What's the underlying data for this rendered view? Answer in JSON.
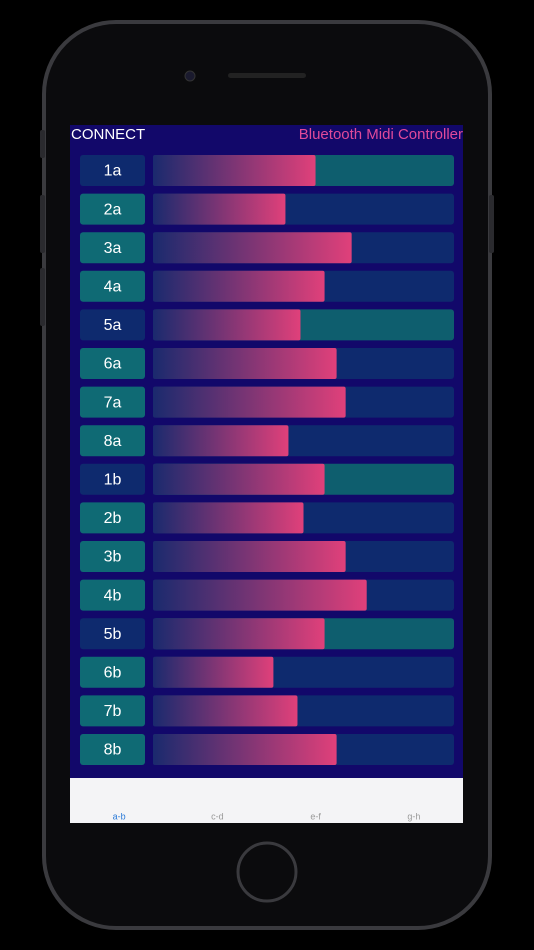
{
  "header": {
    "connect": "CONNECT",
    "title": "Bluetooth Midi Controller"
  },
  "sliders": [
    {
      "label": "1a",
      "value": 0.54,
      "highlighted": true
    },
    {
      "label": "2a",
      "value": 0.44,
      "highlighted": false
    },
    {
      "label": "3a",
      "value": 0.66,
      "highlighted": false
    },
    {
      "label": "4a",
      "value": 0.57,
      "highlighted": false
    },
    {
      "label": "5a",
      "value": 0.49,
      "highlighted": true
    },
    {
      "label": "6a",
      "value": 0.61,
      "highlighted": false
    },
    {
      "label": "7a",
      "value": 0.64,
      "highlighted": false
    },
    {
      "label": "8a",
      "value": 0.45,
      "highlighted": false
    },
    {
      "label": "1b",
      "value": 0.57,
      "highlighted": true
    },
    {
      "label": "2b",
      "value": 0.5,
      "highlighted": false
    },
    {
      "label": "3b",
      "value": 0.64,
      "highlighted": false
    },
    {
      "label": "4b",
      "value": 0.71,
      "highlighted": false
    },
    {
      "label": "5b",
      "value": 0.57,
      "highlighted": true
    },
    {
      "label": "6b",
      "value": 0.4,
      "highlighted": false
    },
    {
      "label": "7b",
      "value": 0.48,
      "highlighted": false
    },
    {
      "label": "8b",
      "value": 0.61,
      "highlighted": false
    }
  ],
  "tabs": [
    {
      "label": "a-b",
      "selected": true
    },
    {
      "label": "c-d",
      "selected": false
    },
    {
      "label": "e-f",
      "selected": false
    },
    {
      "label": "g-h",
      "selected": false
    }
  ]
}
